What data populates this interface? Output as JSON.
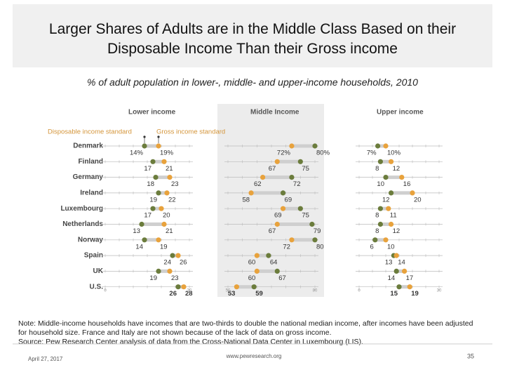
{
  "chart_data": {
    "type": "dot",
    "title": "Larger Shares of Adults are in the Middle Class Based on their Disposable Income Than their Gross income",
    "subtitle": "% of adult population in lower-, middle- and upper-income households, 2010",
    "categories": [
      "Denmark",
      "Finland",
      "Germany",
      "Ireland",
      "Luxembourg",
      "Netherlands",
      "Norway",
      "Spain",
      "UK",
      "U.S."
    ],
    "panels": [
      {
        "title": "Lower income",
        "xlim": [
          0,
          30
        ],
        "xticks": [
          0,
          30
        ]
      },
      {
        "title": "Middle Income",
        "xlim": [
          50,
          80
        ],
        "xticks": [
          50,
          80
        ]
      },
      {
        "title": "Upper income",
        "xlim": [
          0,
          30
        ],
        "xticks": [
          0,
          30
        ]
      }
    ],
    "series": [
      {
        "name": "Disposable income standard",
        "color": "#6b7c3c",
        "values": [
          [
            14,
            17,
            18,
            19,
            17,
            13,
            14,
            24,
            19,
            26
          ],
          [
            80,
            75,
            72,
            69,
            75,
            79,
            80,
            64,
            67,
            59
          ],
          [
            7,
            8,
            10,
            12,
            8,
            8,
            6,
            13,
            14,
            15
          ]
        ],
        "value_labels": [
          [
            "14%",
            "17",
            "18",
            "19",
            "17",
            "13",
            "14",
            "24",
            "19",
            "26"
          ],
          [
            "80%",
            "75",
            "72",
            "69",
            "75",
            "79",
            "80",
            "64",
            "67",
            "59"
          ],
          [
            "7%",
            "8",
            "10",
            "12",
            "8",
            "8",
            "6",
            "13",
            "14",
            "15"
          ]
        ]
      },
      {
        "name": "Gross income standard",
        "color": "#e8a23c",
        "values": [
          [
            19,
            21,
            23,
            22,
            20,
            21,
            19,
            26,
            23,
            28
          ],
          [
            72,
            67,
            62,
            58,
            69,
            67,
            72,
            60,
            60,
            53
          ],
          [
            10,
            12,
            16,
            20,
            11,
            12,
            10,
            14,
            17,
            19
          ]
        ],
        "value_labels": [
          [
            "19%",
            "21",
            "23",
            "22",
            "20",
            "21",
            "19",
            "26",
            "23",
            "28"
          ],
          [
            "72%",
            "67",
            "62",
            "58",
            "69",
            "67",
            "72",
            "60",
            "60",
            "53"
          ],
          [
            "10%",
            "12",
            "16",
            "20",
            "11",
            "12",
            "10",
            "14",
            "17",
            "19"
          ]
        ]
      }
    ]
  },
  "footer": {
    "note": "Note: Middle-income households have incomes that are two-thirds to double the national median income, after incomes have been adjusted for household size. France and Italy are not shown because of the lack of data on gross income.",
    "source": "Source: Pew Research Center analysis of data from the Cross-National Data Center in Luxembourg (LIS).",
    "date": "April 27, 2017",
    "url": "www.pewresearch.org",
    "page": "35"
  }
}
